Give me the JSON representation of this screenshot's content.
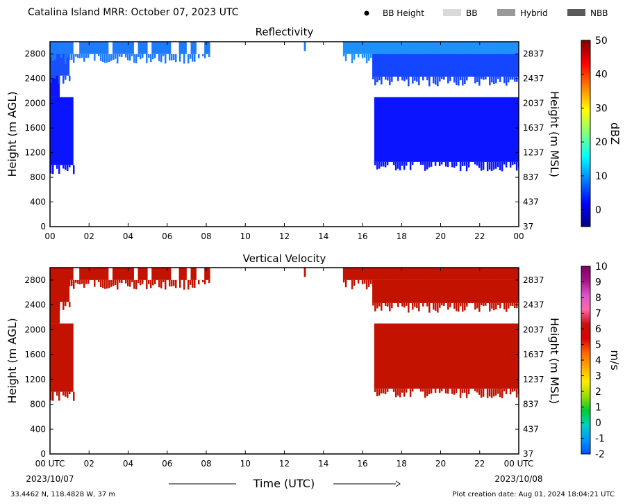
{
  "header": {
    "title": "Catalina Island MRR:  October 07, 2023 UTC",
    "legend": [
      {
        "label": "BB Height",
        "kind": "dot",
        "color": "#000000"
      },
      {
        "label": "BB",
        "kind": "box",
        "color": "#d9d9d9"
      },
      {
        "label": "Hybrid",
        "kind": "box",
        "color": "#999999"
      },
      {
        "label": "NBB",
        "kind": "box",
        "color": "#595959"
      }
    ]
  },
  "footer": {
    "location": "33.4462 N, 118.4828 W, 37 m",
    "creation": "Plot creation date: Aug 01, 2024 18:04:21 UTC",
    "xlabel": "Time (UTC)",
    "start_date": "2023/10/07",
    "end_date": "2023/10/08"
  },
  "chart_data": [
    {
      "type": "heatmap",
      "title": "Reflectivity",
      "ylabel": "Height (m AGL)",
      "y2label": "Height (m MSL)",
      "x_ticks": [
        "00",
        "02",
        "04",
        "06",
        "08",
        "10",
        "12",
        "14",
        "16",
        "18",
        "20",
        "22",
        "00"
      ],
      "xlim": [
        0,
        24
      ],
      "ylim": [
        0,
        3000
      ],
      "y_ticks": [
        0,
        400,
        800,
        1200,
        1600,
        2000,
        2400,
        2800
      ],
      "y2_ticks": [
        37,
        437,
        837,
        1237,
        1637,
        2037,
        2437,
        2837
      ],
      "colorbar": {
        "label": "dBZ",
        "range": [
          -5,
          50
        ],
        "ticks": [
          "0",
          "10",
          "20",
          "30",
          "40",
          "50"
        ],
        "tick_values": [
          0,
          10,
          20,
          30,
          40,
          50
        ],
        "colors": [
          "#000080",
          "#0000ff",
          "#0080ff",
          "#00ffff",
          "#80ff80",
          "#ffff00",
          "#ff8000",
          "#ff0000",
          "#800000"
        ]
      },
      "regions": [
        {
          "time": [
            0.0,
            1.2
          ],
          "height": [
            1000,
            2100
          ],
          "value": 0,
          "color": "#0a14ff"
        },
        {
          "time": [
            0.0,
            0.5
          ],
          "height": [
            2100,
            2500
          ],
          "value": 0,
          "color": "#0a14ff"
        },
        {
          "time": [
            0.0,
            1.0
          ],
          "height": [
            2450,
            2900
          ],
          "value": 2,
          "color": "#1a4fff"
        },
        {
          "time": [
            0.0,
            8.2
          ],
          "height": [
            2800,
            3000
          ],
          "value": 4,
          "color": "#1e7bff"
        },
        {
          "time": [
            13.0,
            13.1
          ],
          "height": [
            2850,
            3000
          ],
          "value": 4,
          "color": "#1e7bff"
        },
        {
          "time": [
            15.0,
            24.0
          ],
          "height": [
            2800,
            3000
          ],
          "value": 5,
          "color": "#1e90ff"
        },
        {
          "time": [
            16.5,
            24.0
          ],
          "height": [
            2430,
            2800
          ],
          "value": 2,
          "color": "#1446ff"
        },
        {
          "time": [
            16.6,
            24.0
          ],
          "height": [
            1050,
            2100
          ],
          "value": 0,
          "color": "#0a14ff"
        }
      ]
    },
    {
      "type": "heatmap",
      "title": "Vertical Velocity",
      "ylabel": "Height (m AGL)",
      "y2label": "Height (m MSL)",
      "x_ticks": [
        "00 UTC",
        "02",
        "04",
        "06",
        "08",
        "10",
        "12",
        "14",
        "16",
        "18",
        "20",
        "22",
        "00 UTC"
      ],
      "xlim": [
        0,
        24
      ],
      "ylim": [
        0,
        3000
      ],
      "y_ticks": [
        0,
        400,
        800,
        1200,
        1600,
        2000,
        2400,
        2800
      ],
      "y2_ticks": [
        37,
        437,
        837,
        1237,
        1637,
        2037,
        2437,
        2837
      ],
      "colorbar": {
        "label": "m/s",
        "range": [
          -2,
          10
        ],
        "ticks": [
          "-2",
          "-1",
          "0",
          "1",
          "2",
          "3",
          "4",
          "5",
          "6",
          "7",
          "8",
          "9",
          "10"
        ],
        "tick_values": [
          -2,
          -1,
          0,
          1,
          2,
          3,
          4,
          5,
          6,
          7,
          8,
          9,
          10
        ],
        "colors": [
          "#0050ff",
          "#0099ff",
          "#00d0c0",
          "#00cc33",
          "#99dd00",
          "#ffee00",
          "#ffaa00",
          "#ff6600",
          "#dd0000",
          "#c81010",
          "#ff66aa",
          "#dd55cc",
          "#aa1188",
          "#7a0066"
        ]
      },
      "regions": [
        {
          "time": [
            0.0,
            1.2
          ],
          "height": [
            1000,
            2100
          ],
          "value": 6,
          "color": "#c31200"
        },
        {
          "time": [
            0.0,
            0.5
          ],
          "height": [
            2100,
            2500
          ],
          "value": 6,
          "color": "#c31200"
        },
        {
          "time": [
            0.0,
            1.0
          ],
          "height": [
            2450,
            2900
          ],
          "value": 6,
          "color": "#c31200"
        },
        {
          "time": [
            0.0,
            8.2
          ],
          "height": [
            2800,
            3000
          ],
          "value": 6,
          "color": "#c31200"
        },
        {
          "time": [
            13.0,
            13.1
          ],
          "height": [
            2850,
            3000
          ],
          "value": 6,
          "color": "#c31200"
        },
        {
          "time": [
            15.0,
            24.0
          ],
          "height": [
            2800,
            3000
          ],
          "value": 6,
          "color": "#c31200"
        },
        {
          "time": [
            16.5,
            24.0
          ],
          "height": [
            2430,
            2800
          ],
          "value": 6,
          "color": "#c31200"
        },
        {
          "time": [
            16.6,
            24.0
          ],
          "height": [
            1050,
            2100
          ],
          "value": 6,
          "color": "#c31200"
        }
      ]
    }
  ]
}
